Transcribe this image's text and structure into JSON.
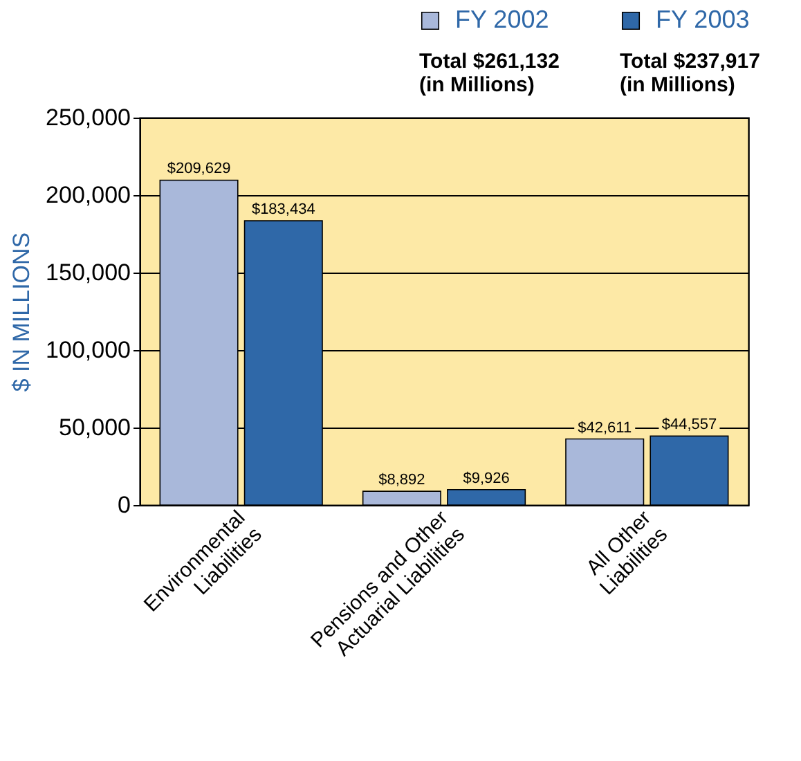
{
  "chart_data": {
    "type": "bar",
    "ylabel": "$ IN MILLIONS",
    "categories": [
      "Environmental\nLiabilities",
      "Pensions and Other\nActuarial Liabilities",
      "All Other\nLiabilities"
    ],
    "series": [
      {
        "name": "FY 2002",
        "color": "#a9b8da",
        "values": [
          209629,
          8892,
          42611
        ],
        "value_labels": [
          "$209,629",
          "$8,892",
          "$42,611"
        ]
      },
      {
        "name": "FY 2003",
        "color": "#2f68a8",
        "values": [
          183434,
          9926,
          44557
        ],
        "value_labels": [
          "$183,434",
          "$9,926",
          "$44,557"
        ]
      }
    ],
    "annotations": [
      "Total $261,132\n(in Millions)",
      "Total $237,917\n(in Millions)"
    ],
    "ylim": [
      0,
      250000
    ],
    "yticks": [
      0,
      {
        "value": 50000,
        "label": "50,000"
      },
      {
        "value": 100000,
        "label": "100,000"
      },
      {
        "value": 150000,
        "label": "150,000"
      },
      {
        "value": 200000,
        "label": "200,000"
      },
      {
        "value": 250000,
        "label": "250,000"
      }
    ],
    "grid": "y",
    "legend": "top"
  }
}
